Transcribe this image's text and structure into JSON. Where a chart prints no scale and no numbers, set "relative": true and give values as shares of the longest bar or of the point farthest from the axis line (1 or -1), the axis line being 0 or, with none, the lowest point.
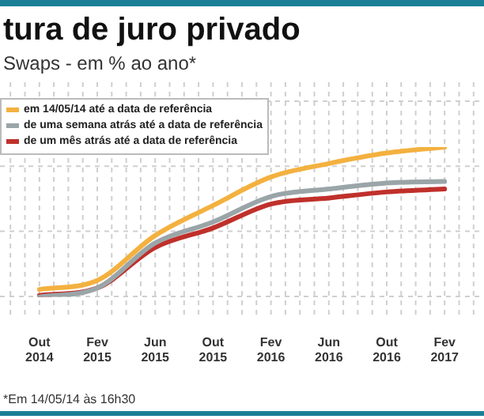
{
  "chart_data": {
    "type": "line",
    "title": "tura de juro privado",
    "subtitle": "Swaps - em % ao ano*",
    "relative": true,
    "grid": true,
    "legend": "top left",
    "marker": "none",
    "line_style": "solid",
    "categories": [
      "Out 2014",
      "Fev 2015",
      "Jun 2015",
      "Out 2015",
      "Fev 2016",
      "Jun 2016",
      "Out 2016",
      "Fev 2017"
    ],
    "series": [
      {
        "name": "em 14/05/14 até a data de referência",
        "color": "#f3b13f",
        "values": [
          0.05,
          0.11,
          0.41,
          0.61,
          0.8,
          0.89,
          0.96,
          1
        ]
      },
      {
        "name": "de uma semana atrás até a data de referência",
        "color": "#9aa5a8",
        "values": [
          0,
          0.06,
          0.36,
          0.5,
          0.67,
          0.72,
          0.76,
          0.77
        ]
      },
      {
        "name": "de um mês atrás até a data de referência",
        "color": "#c0302b",
        "values": [
          0.01,
          0.06,
          0.33,
          0.46,
          0.62,
          0.66,
          0.7,
          0.72
        ]
      }
    ],
    "annotations": [
      "*Em 14/05/14 às 16h30"
    ]
  }
}
